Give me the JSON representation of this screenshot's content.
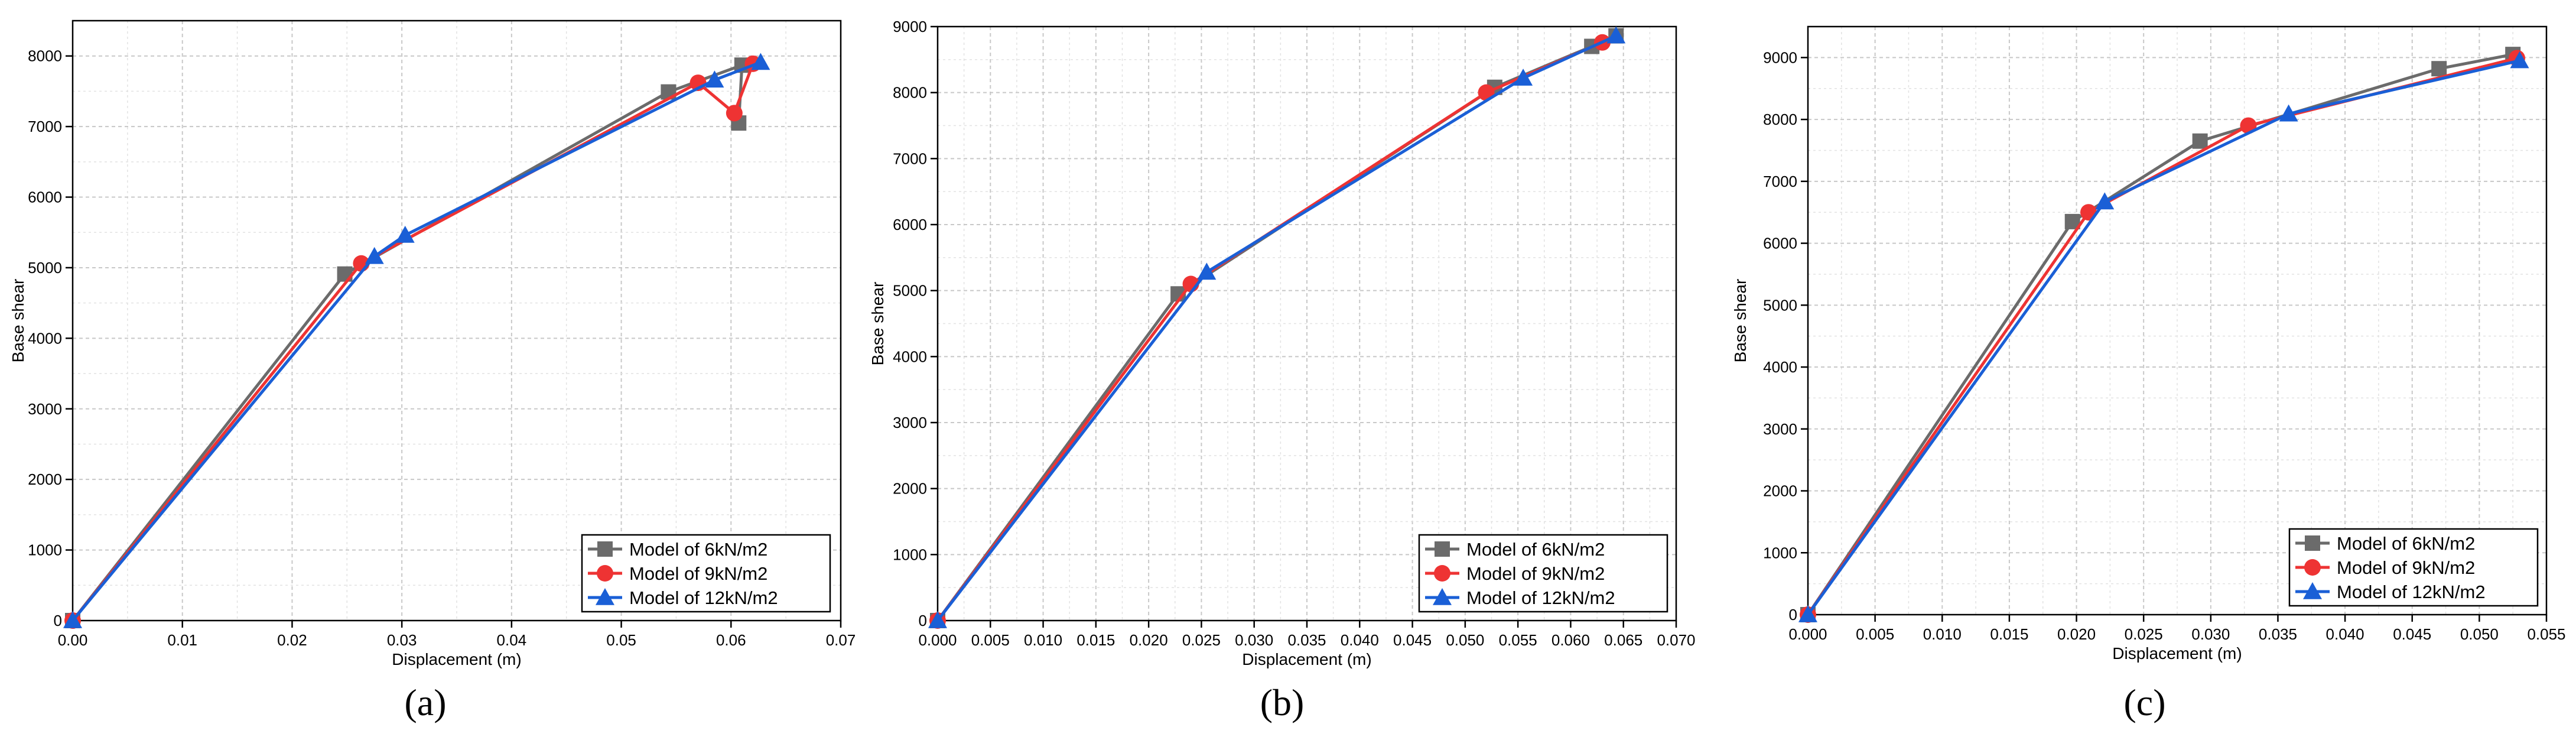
{
  "chart_data": [
    {
      "type": "line",
      "caption": "(a)",
      "xlabel": "Displacement (m)",
      "ylabel": "Base shear",
      "xlim": [
        0,
        0.07
      ],
      "ylim": [
        0,
        8500
      ],
      "xticks": [
        0.0,
        0.01,
        0.02,
        0.03,
        0.04,
        0.05,
        0.06,
        0.07
      ],
      "xtick_labels": [
        "0.00",
        "0.01",
        "0.02",
        "0.03",
        "0.04",
        "0.05",
        "0.06",
        "0.07"
      ],
      "yticks": [
        0,
        1000,
        2000,
        3000,
        4000,
        5000,
        6000,
        7000,
        8000
      ],
      "ytick_labels": [
        "0",
        "1000",
        "2000",
        "3000",
        "4000",
        "5000",
        "6000",
        "7000",
        "8000"
      ],
      "grid": true,
      "legend_position": "bottom-right",
      "series": [
        {
          "name": "Model of 6kN/m2",
          "color": "#6b6b6b",
          "marker": "square",
          "x": [
            0,
            0.0248,
            0.0543,
            0.061,
            0.0607
          ],
          "y": [
            0,
            4910,
            7490,
            7870,
            7050
          ]
        },
        {
          "name": "Model of 9kN/m2",
          "color": "#ee3333",
          "marker": "circle",
          "x": [
            0,
            0.0263,
            0.057,
            0.0603,
            0.062
          ],
          "y": [
            0,
            5060,
            7620,
            7190,
            7890
          ]
        },
        {
          "name": "Model of 12kN/m2",
          "color": "#1a5fd6",
          "marker": "triangle",
          "x": [
            0,
            0.0275,
            0.0303,
            0.0585,
            0.0627
          ],
          "y": [
            0,
            5160,
            5460,
            7660,
            7910
          ]
        }
      ]
    },
    {
      "type": "line",
      "caption": "(b)",
      "xlabel": "Displacement (m)",
      "ylabel": "Base shear",
      "xlim": [
        0,
        0.07
      ],
      "ylim": [
        0,
        9000
      ],
      "xticks": [
        0,
        0.005,
        0.01,
        0.015,
        0.02,
        0.025,
        0.03,
        0.035,
        0.04,
        0.045,
        0.05,
        0.055,
        0.06,
        0.065,
        0.07
      ],
      "xtick_labels": [
        "0.000",
        "0.005",
        "0.010",
        "0.015",
        "0.020",
        "0.025",
        "0.030",
        "0.035",
        "0.040",
        "0.045",
        "0.050",
        "0.055",
        "0.060",
        "0.065",
        "0.070"
      ],
      "yticks": [
        0,
        1000,
        2000,
        3000,
        4000,
        5000,
        6000,
        7000,
        8000,
        9000
      ],
      "ytick_labels": [
        "0",
        "1000",
        "2000",
        "3000",
        "4000",
        "5000",
        "6000",
        "7000",
        "8000",
        "9000"
      ],
      "grid": true,
      "legend_position": "bottom-right",
      "series": [
        {
          "name": "Model of 6kN/m2",
          "color": "#6b6b6b",
          "marker": "square",
          "x": [
            0,
            0.0228,
            0.0528,
            0.062,
            0.0643
          ],
          "y": [
            0,
            4950,
            8080,
            8700,
            8860
          ]
        },
        {
          "name": "Model of 9kN/m2",
          "color": "#ee3333",
          "marker": "circle",
          "x": [
            0,
            0.024,
            0.052,
            0.063
          ],
          "y": [
            0,
            5100,
            8000,
            8760
          ]
        },
        {
          "name": "Model of 12kN/m2",
          "color": "#1a5fd6",
          "marker": "triangle",
          "x": [
            0,
            0.0255,
            0.0555,
            0.0643
          ],
          "y": [
            0,
            5280,
            8220,
            8860
          ]
        }
      ]
    },
    {
      "type": "line",
      "caption": "(c)",
      "xlabel": "Displacement (m)",
      "ylabel": "Base shear",
      "xlim": [
        0,
        0.055
      ],
      "ylim": [
        0,
        9500
      ],
      "xticks": [
        0,
        0.005,
        0.01,
        0.015,
        0.02,
        0.025,
        0.03,
        0.035,
        0.04,
        0.045,
        0.05,
        0.055
      ],
      "xtick_labels": [
        "0.000",
        "0.005",
        "0.010",
        "0.015",
        "0.020",
        "0.025",
        "0.030",
        "0.035",
        "0.040",
        "0.045",
        "0.050",
        "0.055"
      ],
      "yticks": [
        0,
        1000,
        2000,
        3000,
        4000,
        5000,
        6000,
        7000,
        8000,
        9000
      ],
      "ytick_labels": [
        "0",
        "1000",
        "2000",
        "3000",
        "4000",
        "5000",
        "6000",
        "7000",
        "8000",
        "9000"
      ],
      "grid": true,
      "legend_position": "bottom-right",
      "series": [
        {
          "name": "Model of 6kN/m2",
          "color": "#6b6b6b",
          "marker": "square",
          "x": [
            0,
            0.0197,
            0.0292,
            0.047,
            0.0525
          ],
          "y": [
            0,
            6350,
            7650,
            8820,
            9050
          ]
        },
        {
          "name": "Model of 9kN/m2",
          "color": "#ee3333",
          "marker": "circle",
          "x": [
            0,
            0.0209,
            0.0328,
            0.0528
          ],
          "y": [
            0,
            6500,
            7900,
            8990
          ]
        },
        {
          "name": "Model of 12kN/m2",
          "color": "#1a5fd6",
          "marker": "triangle",
          "x": [
            0,
            0.0221,
            0.0358,
            0.053
          ],
          "y": [
            0,
            6670,
            8090,
            8950
          ]
        }
      ]
    }
  ]
}
